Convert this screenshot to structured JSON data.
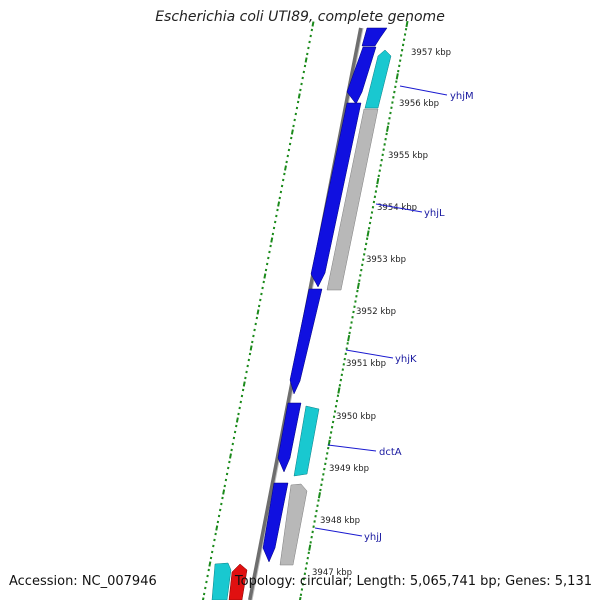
{
  "title": "Escherichia coli UTI89, complete genome",
  "footer": {
    "accession": "Accession: NC_007946",
    "topology": "Topology: circular; Length: 5,065,741 bp; Genes: 5,131"
  },
  "colors": {
    "backbone": "#8c8c8c",
    "tick": "#1b8a1b",
    "gene_blue": "#1010e0",
    "gene_cyan": "#19c8d0",
    "gene_gray": "#b8b8b8",
    "gene_red": "#e01010",
    "label_line": "#1a1ad0"
  },
  "scale_labels": [
    "3957 kbp",
    "3956 kbp",
    "3955 kbp",
    "3954 kbp",
    "3953 kbp",
    "3952 kbp",
    "3951 kbp",
    "3950 kbp",
    "3949 kbp",
    "3948 kbp",
    "3947 kbp"
  ],
  "gene_labels": [
    "yhjM",
    "yhjL",
    "yhjK",
    "dctA",
    "yhjJ"
  ]
}
